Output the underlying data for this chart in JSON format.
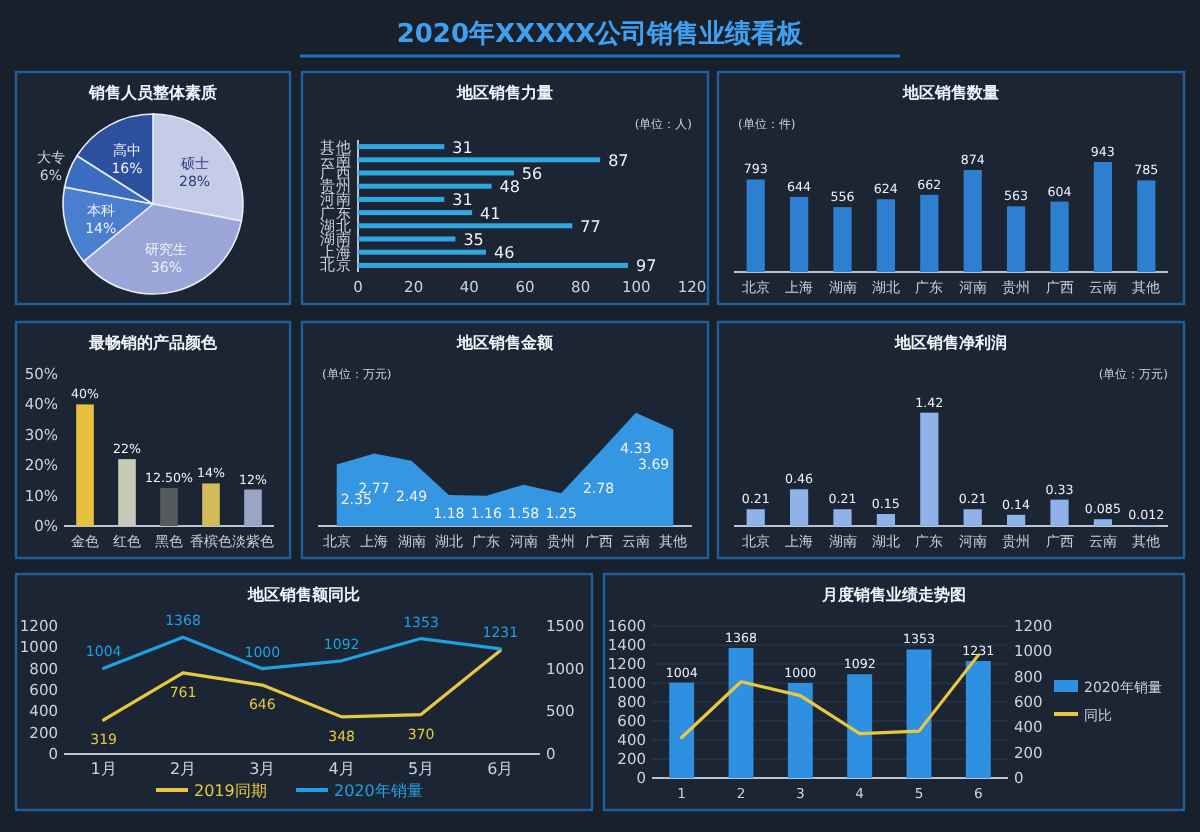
{
  "chart_data": [
    {
      "type": "other",
      "title": "2020年XXXXX公司销售业绩看板"
    },
    {
      "type": "pie",
      "title": "销售人员整体素质",
      "categories": [
        "硕士",
        "研究生",
        "本科",
        "大专",
        "高中"
      ],
      "values": [
        28,
        36,
        14,
        6,
        16
      ],
      "value_labels": [
        "28%",
        "36%",
        "14%",
        "6%",
        "16%"
      ],
      "colors": [
        "#c5cbe8",
        "#9aa6d8",
        "#4a7fd0",
        "#3a6cc0",
        "#2c4f9e"
      ]
    },
    {
      "type": "bar",
      "orientation": "horizontal",
      "title": "地区销售力量",
      "annotations": [
        "(单位：人)"
      ],
      "categories": [
        "其他",
        "云南",
        "广西",
        "贵州",
        "河南",
        "广东",
        "湖北",
        "湖南",
        "上海",
        "北京"
      ],
      "values": [
        31,
        87,
        56,
        48,
        31,
        41,
        77,
        35,
        46,
        97
      ],
      "color": "#2fa8e0",
      "data_labels": true,
      "xlim": [
        0,
        120
      ],
      "xticks": [
        0,
        20,
        40,
        60,
        80,
        100,
        120
      ]
    },
    {
      "type": "bar",
      "title": "地区销售数量",
      "annotations": [
        "(单位：件)"
      ],
      "categories": [
        "北京",
        "上海",
        "湖南",
        "湖北",
        "广东",
        "河南",
        "贵州",
        "广西",
        "云南",
        "其他"
      ],
      "values": [
        793,
        644,
        556,
        624,
        662,
        874,
        563,
        604,
        943,
        785
      ],
      "color": "#2f7fd0",
      "data_labels": true
    },
    {
      "type": "bar",
      "title": "最畅销的产品颜色",
      "categories": [
        "金色",
        "红色",
        "黑色",
        "香槟色",
        "淡紫色"
      ],
      "values": [
        40,
        22,
        12.5,
        14,
        12
      ],
      "value_labels": [
        "40%",
        "22%",
        "12.50%",
        "14%",
        "12%"
      ],
      "colors": [
        "#e8c040",
        "#c8c8b8",
        "#555a5e",
        "#d4bc5c",
        "#9aa4c4"
      ],
      "ylim": [
        0,
        50
      ],
      "yticks": [
        {
          "value": 0,
          "label": "0%"
        },
        {
          "value": 10,
          "label": "10%"
        },
        {
          "value": 20,
          "label": "20%"
        },
        {
          "value": 30,
          "label": "30%"
        },
        {
          "value": 40,
          "label": "40%"
        },
        {
          "value": 50,
          "label": "50%"
        }
      ]
    },
    {
      "type": "area",
      "title": "地区销售金额",
      "annotations": [
        "(单位：万元)"
      ],
      "categories": [
        "北京",
        "上海",
        "湖南",
        "湖北",
        "广东",
        "河南",
        "贵州",
        "广西",
        "云南",
        "其他"
      ],
      "values": [
        2.35,
        2.77,
        2.49,
        1.18,
        1.16,
        1.58,
        1.25,
        2.78,
        4.33,
        3.69
      ],
      "color": "#3596e2",
      "data_labels": true
    },
    {
      "type": "bar",
      "title": "地区销售净利润",
      "annotations": [
        "(单位：万元)"
      ],
      "categories": [
        "北京",
        "上海",
        "湖南",
        "湖北",
        "广东",
        "河南",
        "贵州",
        "广西",
        "云南",
        "其他"
      ],
      "values": [
        0.21,
        0.46,
        0.21,
        0.15,
        1.42,
        0.21,
        0.14,
        0.33,
        0.085,
        0.012
      ],
      "color": "#8fb2e8",
      "data_labels": true
    },
    {
      "type": "line",
      "title": "地区销售额同比",
      "categories": [
        "1月",
        "2月",
        "3月",
        "4月",
        "5月",
        "6月"
      ],
      "ylim": [
        0,
        1200
      ],
      "yticks": [
        0,
        200,
        400,
        600,
        800,
        1000,
        1200
      ],
      "y2lim": [
        0,
        1500
      ],
      "y2ticks": [
        0,
        500,
        1000,
        1500
      ],
      "legend": "bottom",
      "series": [
        {
          "name": "2019同期",
          "color": "#e8c840",
          "values": [
            319,
            761,
            646,
            348,
            370,
            970
          ],
          "value_labels": [
            "319",
            "761",
            "646",
            "348",
            "370",
            null
          ]
        },
        {
          "name": "2020年销量",
          "color": "#1fa0e0",
          "axis": "y2",
          "values": [
            1004,
            1368,
            1000,
            1092,
            1353,
            1231
          ],
          "value_labels": [
            "1004",
            "1368",
            "1000",
            "1092",
            "1353",
            "1231"
          ]
        }
      ]
    },
    {
      "type": "bar",
      "title": "月度销售业绩走势图",
      "categories": [
        "1",
        "2",
        "3",
        "4",
        "5",
        "6"
      ],
      "ylim": [
        0,
        1600
      ],
      "yticks": [
        0,
        200,
        400,
        600,
        800,
        1000,
        1200,
        1400,
        1600
      ],
      "y2lim": [
        0,
        1200
      ],
      "y2ticks": [
        0,
        200,
        400,
        600,
        800,
        1000,
        1200
      ],
      "grid": "y",
      "legend": "right",
      "series": [
        {
          "name": "2020年销量",
          "type": "bar",
          "color": "#2f8fe0",
          "values": [
            1004,
            1368,
            1000,
            1092,
            1353,
            1231
          ],
          "value_labels": [
            "1004",
            "1368",
            "1000",
            "1092",
            "1353",
            "1231"
          ]
        },
        {
          "name": "同比",
          "type": "line",
          "axis": "y2",
          "color": "#e8c840",
          "values": [
            320,
            760,
            650,
            350,
            370,
            970
          ]
        }
      ]
    }
  ]
}
